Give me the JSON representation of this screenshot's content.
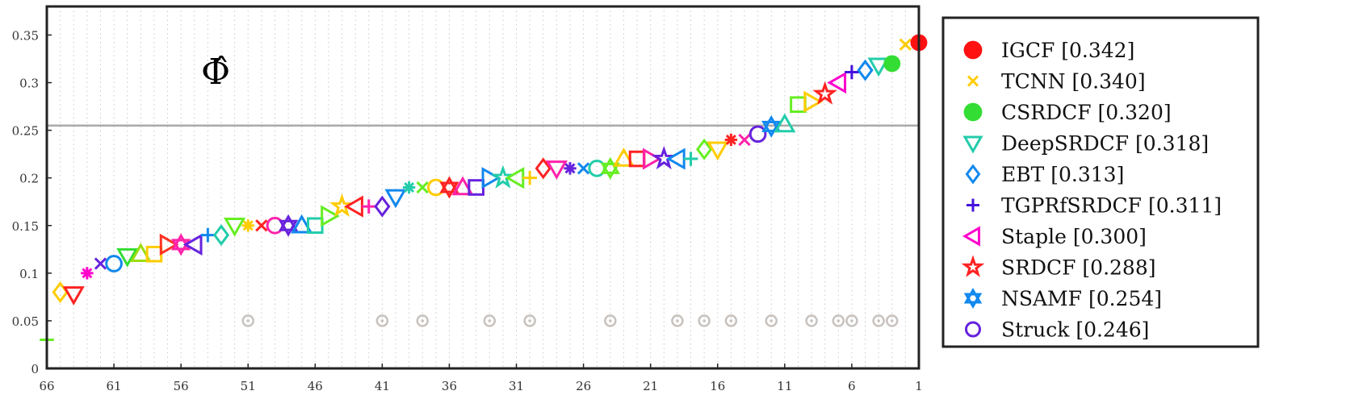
{
  "chart_data": {
    "type": "scatter",
    "title": "",
    "annotation": "Φ̂",
    "xlabel": "",
    "ylabel": "",
    "x_reversed": true,
    "xlim": [
      66,
      1
    ],
    "ylim": [
      0,
      0.38
    ],
    "xticks": [
      66,
      61,
      56,
      51,
      46,
      41,
      36,
      31,
      26,
      21,
      16,
      11,
      6,
      1
    ],
    "yticks": [
      0,
      0.05,
      0.1,
      0.15,
      0.2,
      0.25,
      0.3,
      0.35
    ],
    "ytick_labels": [
      "0",
      "0.05",
      "0.1",
      "0.15",
      "0.2",
      "0.25",
      "0.3",
      "0.35"
    ],
    "reference_line": 0.255,
    "grid": "vertical dotted",
    "legend_position": "right, outside",
    "points": [
      {
        "rank": 66,
        "value": 0.03,
        "marker": "plus",
        "color": "#66ee22"
      },
      {
        "rank": 65,
        "value": 0.08,
        "marker": "diamond",
        "color": "#ffcc00"
      },
      {
        "rank": 64,
        "value": 0.078,
        "marker": "triangle-down",
        "color": "#ff2222"
      },
      {
        "rank": 63,
        "value": 0.1,
        "marker": "asterisk",
        "color": "#ff00cc"
      },
      {
        "rank": 62,
        "value": 0.11,
        "marker": "x",
        "color": "#6622dd"
      },
      {
        "rank": 61,
        "value": 0.11,
        "marker": "circle",
        "color": "#1188ee"
      },
      {
        "rank": 60,
        "value": 0.118,
        "marker": "triangle-down",
        "color": "#33dd33"
      },
      {
        "rank": 59,
        "value": 0.12,
        "marker": "triangle-up",
        "color": "#99dd11"
      },
      {
        "rank": 58,
        "value": 0.12,
        "marker": "square",
        "color": "#ffcc00"
      },
      {
        "rank": 57,
        "value": 0.13,
        "marker": "triangle-right",
        "color": "#ff3322"
      },
      {
        "rank": 56,
        "value": 0.13,
        "marker": "star6",
        "color": "#ff22aa"
      },
      {
        "rank": 55,
        "value": 0.13,
        "marker": "triangle-left",
        "color": "#6622dd"
      },
      {
        "rank": 54,
        "value": 0.14,
        "marker": "plus",
        "color": "#1188ee"
      },
      {
        "rank": 53,
        "value": 0.14,
        "marker": "diamond",
        "color": "#22ccaa"
      },
      {
        "rank": 52,
        "value": 0.15,
        "marker": "triangle-down",
        "color": "#66ee22"
      },
      {
        "rank": 51,
        "value": 0.15,
        "marker": "asterisk",
        "color": "#ffcc00"
      },
      {
        "rank": 50,
        "value": 0.15,
        "marker": "x",
        "color": "#ff2222"
      },
      {
        "rank": 49,
        "value": 0.15,
        "marker": "circle",
        "color": "#ff22aa"
      },
      {
        "rank": 48,
        "value": 0.15,
        "marker": "star6",
        "color": "#6622dd"
      },
      {
        "rank": 47,
        "value": 0.15,
        "marker": "triangle-up",
        "color": "#1188ee"
      },
      {
        "rank": 46,
        "value": 0.15,
        "marker": "square",
        "color": "#22ccaa"
      },
      {
        "rank": 45,
        "value": 0.16,
        "marker": "triangle-right",
        "color": "#66ee22"
      },
      {
        "rank": 44,
        "value": 0.17,
        "marker": "star5",
        "color": "#ffcc00"
      },
      {
        "rank": 43,
        "value": 0.17,
        "marker": "triangle-left",
        "color": "#ff2222"
      },
      {
        "rank": 42,
        "value": 0.17,
        "marker": "plus",
        "color": "#ff22aa"
      },
      {
        "rank": 41,
        "value": 0.17,
        "marker": "diamond",
        "color": "#6622dd"
      },
      {
        "rank": 40,
        "value": 0.18,
        "marker": "triangle-down",
        "color": "#1188ee"
      },
      {
        "rank": 39,
        "value": 0.19,
        "marker": "asterisk",
        "color": "#22ccaa"
      },
      {
        "rank": 38,
        "value": 0.19,
        "marker": "x",
        "color": "#66ee22"
      },
      {
        "rank": 37,
        "value": 0.19,
        "marker": "circle",
        "color": "#ffcc00"
      },
      {
        "rank": 36,
        "value": 0.19,
        "marker": "star6",
        "color": "#ff2222"
      },
      {
        "rank": 35,
        "value": 0.19,
        "marker": "triangle-up",
        "color": "#ff22aa"
      },
      {
        "rank": 34,
        "value": 0.19,
        "marker": "square",
        "color": "#6622dd"
      },
      {
        "rank": 33,
        "value": 0.2,
        "marker": "triangle-right",
        "color": "#1188ee"
      },
      {
        "rank": 32,
        "value": 0.2,
        "marker": "star5",
        "color": "#22ccaa"
      },
      {
        "rank": 31,
        "value": 0.2,
        "marker": "triangle-left",
        "color": "#66ee22"
      },
      {
        "rank": 30,
        "value": 0.2,
        "marker": "plus",
        "color": "#ffcc00"
      },
      {
        "rank": 29,
        "value": 0.21,
        "marker": "diamond",
        "color": "#ff2222"
      },
      {
        "rank": 28,
        "value": 0.21,
        "marker": "triangle-down",
        "color": "#ff22aa"
      },
      {
        "rank": 27,
        "value": 0.21,
        "marker": "asterisk",
        "color": "#6622dd"
      },
      {
        "rank": 26,
        "value": 0.21,
        "marker": "x",
        "color": "#1188ee"
      },
      {
        "rank": 25,
        "value": 0.21,
        "marker": "circle",
        "color": "#22ccaa"
      },
      {
        "rank": 24,
        "value": 0.21,
        "marker": "star6",
        "color": "#66ee22"
      },
      {
        "rank": 23,
        "value": 0.22,
        "marker": "triangle-up",
        "color": "#ffcc00"
      },
      {
        "rank": 22,
        "value": 0.22,
        "marker": "square",
        "color": "#ff2222"
      },
      {
        "rank": 21,
        "value": 0.22,
        "marker": "triangle-right",
        "color": "#ff22aa"
      },
      {
        "rank": 20,
        "value": 0.22,
        "marker": "star5",
        "color": "#6622dd"
      },
      {
        "rank": 19,
        "value": 0.22,
        "marker": "triangle-left",
        "color": "#1188ee"
      },
      {
        "rank": 18,
        "value": 0.22,
        "marker": "plus",
        "color": "#22ccaa"
      },
      {
        "rank": 17,
        "value": 0.23,
        "marker": "diamond",
        "color": "#66ee22"
      },
      {
        "rank": 16,
        "value": 0.23,
        "marker": "triangle-down",
        "color": "#ffcc00"
      },
      {
        "rank": 15,
        "value": 0.24,
        "marker": "asterisk",
        "color": "#ff2222"
      },
      {
        "rank": 14,
        "value": 0.24,
        "marker": "x",
        "color": "#ff22aa"
      },
      {
        "rank": 13,
        "value": 0.246,
        "marker": "circle",
        "color": "#6622dd",
        "legend": true
      },
      {
        "rank": 12,
        "value": 0.254,
        "marker": "star6",
        "color": "#1188ee",
        "legend": true
      },
      {
        "rank": 11,
        "value": 0.256,
        "marker": "triangle-up",
        "color": "#22ccaa"
      },
      {
        "rank": 10,
        "value": 0.277,
        "marker": "square",
        "color": "#66ee22"
      },
      {
        "rank": 9,
        "value": 0.28,
        "marker": "triangle-right",
        "color": "#ffcc00"
      },
      {
        "rank": 8,
        "value": 0.288,
        "marker": "star5",
        "color": "#ff2222",
        "legend": true
      },
      {
        "rank": 7,
        "value": 0.3,
        "marker": "triangle-left",
        "color": "#ff00cc",
        "legend": true
      },
      {
        "rank": 6,
        "value": 0.311,
        "marker": "plus",
        "color": "#4411dd",
        "legend": true
      },
      {
        "rank": 5,
        "value": 0.313,
        "marker": "diamond",
        "color": "#1188ee",
        "legend": true
      },
      {
        "rank": 4,
        "value": 0.318,
        "marker": "triangle-down",
        "color": "#22ccaa",
        "legend": true
      },
      {
        "rank": 3,
        "value": 0.32,
        "marker": "filled-circle",
        "color": "#33dd33",
        "legend": true
      },
      {
        "rank": 2,
        "value": 0.34,
        "marker": "x",
        "color": "#ffcc00",
        "legend": true
      },
      {
        "rank": 1,
        "value": 0.342,
        "marker": "filled-circle",
        "color": "#ff1111",
        "legend": true
      }
    ],
    "gray_markers_y": 0.05,
    "gray_markers_ranks": [
      51,
      41,
      38,
      33,
      30,
      24,
      19,
      17,
      15,
      12,
      9,
      7,
      6,
      4,
      3
    ],
    "gray_marker_color": "#c8c2be",
    "legend": [
      {
        "label": "IGCF [0.342]",
        "marker": "filled-circle",
        "color": "#ff1111"
      },
      {
        "label": "TCNN [0.340]",
        "marker": "x",
        "color": "#ffcc00"
      },
      {
        "label": "CSRDCF [0.320]",
        "marker": "filled-circle",
        "color": "#33dd33"
      },
      {
        "label": "DeepSRDCF [0.318]",
        "marker": "triangle-down",
        "color": "#22ccaa"
      },
      {
        "label": "EBT [0.313]",
        "marker": "diamond",
        "color": "#1188ee"
      },
      {
        "label": "TGPRfSRDCF [0.311]",
        "marker": "plus",
        "color": "#4411dd"
      },
      {
        "label": "Staple [0.300]",
        "marker": "triangle-left",
        "color": "#ff00cc"
      },
      {
        "label": "SRDCF [0.288]",
        "marker": "star5",
        "color": "#ff2222"
      },
      {
        "label": "NSAMF [0.254]",
        "marker": "star6",
        "color": "#1188ee"
      },
      {
        "label": "Struck [0.246]",
        "marker": "circle",
        "color": "#6622dd"
      }
    ]
  }
}
